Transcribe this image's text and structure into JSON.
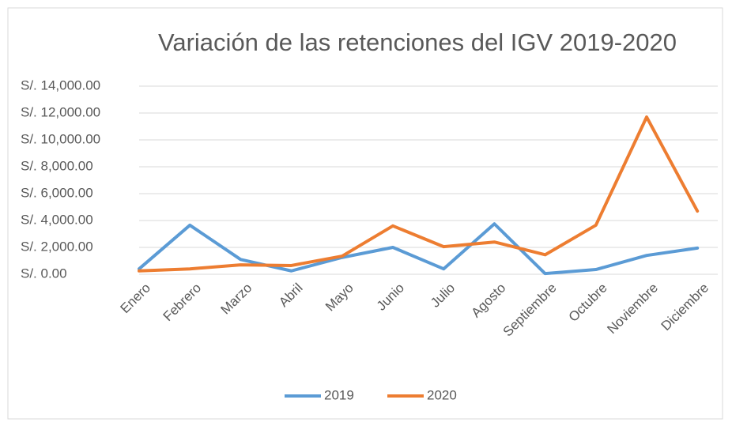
{
  "chart_data": {
    "type": "line",
    "title": "Variación de las retenciones del IGV 2019-2020",
    "categories": [
      "Enero",
      "Febrero",
      "Marzo",
      "Abril",
      "Mayo",
      "Junio",
      "Julio",
      "Agosto",
      "Septiembre",
      "Octubre",
      "Noviembre",
      "Diciembre"
    ],
    "series": [
      {
        "name": "2019",
        "color": "#5b9bd5",
        "values": [
          400,
          3650,
          1100,
          250,
          1250,
          2000,
          400,
          3750,
          50,
          350,
          1400,
          1950
        ]
      },
      {
        "name": "2020",
        "color": "#ed7d31",
        "values": [
          250,
          400,
          700,
          650,
          1350,
          3600,
          2050,
          2400,
          1450,
          3650,
          11700,
          4700
        ]
      }
    ],
    "ylim": [
      0,
      14000
    ],
    "yticks": [
      {
        "value": 0,
        "label": "S/. 0.00"
      },
      {
        "value": 2000,
        "label": "S/. 2,000.00"
      },
      {
        "value": 4000,
        "label": "S/. 4,000.00"
      },
      {
        "value": 6000,
        "label": "S/. 6,000.00"
      },
      {
        "value": 8000,
        "label": "S/. 8,000.00"
      },
      {
        "value": 10000,
        "label": "S/. 10,000.00"
      },
      {
        "value": 12000,
        "label": "S/. 12,000.00"
      },
      {
        "value": 14000,
        "label": "S/. 14,000.00"
      }
    ],
    "grid": true,
    "legend": "bottom"
  }
}
